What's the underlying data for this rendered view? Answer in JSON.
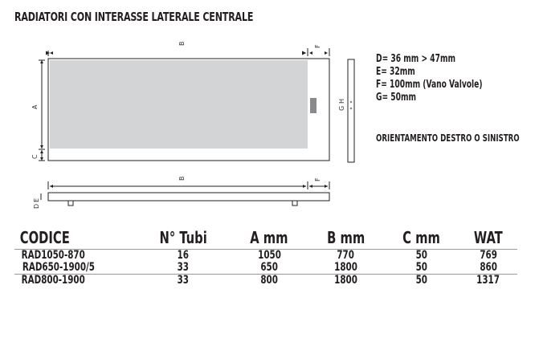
{
  "title": "RADIATORI CON INTERASSE LATERALE CENTRALE",
  "diagram": {
    "labels": {
      "A": "A",
      "B": "B",
      "C": "C",
      "D": "D",
      "E": "E",
      "F": "F",
      "G": "G",
      "H": "H"
    },
    "panel_color": "#d3d4d6",
    "valve_color": "#8a8a8c"
  },
  "specs": [
    "D= 36 mm > 47mm",
    "E= 32mm",
    "F= 100mm (Vano Valvole)",
    "G= 50mm"
  ],
  "orientation": "ORIENTAMENTO DESTRO O SINISTRO",
  "table": {
    "headers": [
      "CODICE",
      "N° Tubi",
      "A mm",
      "B mm",
      "C mm",
      "WAT"
    ],
    "rows": [
      [
        "RAD1050-870",
        "16",
        "1050",
        "770",
        "50",
        "769"
      ],
      [
        "RAD650-1900/5",
        "33",
        "650",
        "1800",
        "50",
        "860"
      ],
      [
        "RAD800-1900",
        "33",
        "800",
        "1800",
        "50",
        "1317"
      ]
    ]
  }
}
